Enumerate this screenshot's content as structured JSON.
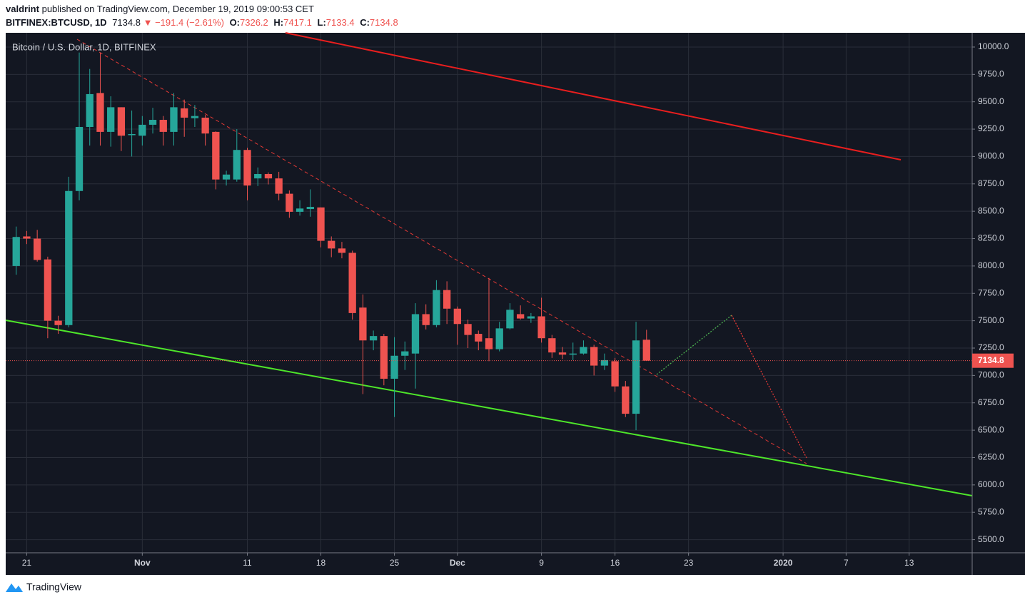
{
  "header": {
    "author": "valdrint",
    "published": "published on TradingView.com, December 19, 2019 09:00:53 CET",
    "symbol": "BITFINEX:BTCUSD, 1D",
    "last": "7134.8",
    "arrow": "▼",
    "change": "−191.4 (−2.61%)",
    "ohlc": [
      {
        "label": "O:",
        "value": "7326.2"
      },
      {
        "label": "H:",
        "value": "7417.1"
      },
      {
        "label": "L:",
        "value": "7133.4"
      },
      {
        "label": "C:",
        "value": "7134.8"
      }
    ]
  },
  "footer": {
    "brand": "TradingView"
  },
  "chart_data": {
    "type": "candlestick",
    "title": "Bitcoin / U.S. Dollar, 1D, BITFINEX",
    "up_color": "#26a69a",
    "down_color": "#ef5350",
    "grid": true,
    "x": [
      "2019-10-20",
      "2019-10-21",
      "2019-10-22",
      "2019-10-23",
      "2019-10-24",
      "2019-10-25",
      "2019-10-26",
      "2019-10-27",
      "2019-10-28",
      "2019-10-29",
      "2019-10-30",
      "2019-10-31",
      "2019-11-01",
      "2019-11-02",
      "2019-11-03",
      "2019-11-04",
      "2019-11-05",
      "2019-11-06",
      "2019-11-07",
      "2019-11-08",
      "2019-11-09",
      "2019-11-10",
      "2019-11-11",
      "2019-11-12",
      "2019-11-13",
      "2019-11-14",
      "2019-11-15",
      "2019-11-16",
      "2019-11-17",
      "2019-11-18",
      "2019-11-19",
      "2019-11-20",
      "2019-11-21",
      "2019-11-22",
      "2019-11-23",
      "2019-11-24",
      "2019-11-25",
      "2019-11-26",
      "2019-11-27",
      "2019-11-28",
      "2019-11-29",
      "2019-11-30",
      "2019-12-01",
      "2019-12-02",
      "2019-12-03",
      "2019-12-04",
      "2019-12-05",
      "2019-12-06",
      "2019-12-07",
      "2019-12-08",
      "2019-12-09",
      "2019-12-10",
      "2019-12-11",
      "2019-12-12",
      "2019-12-13",
      "2019-12-14",
      "2019-12-15",
      "2019-12-16",
      "2019-12-17",
      "2019-12-18",
      "2019-12-19"
    ],
    "open": [
      8000,
      8270,
      8250,
      8060,
      7500,
      7460,
      8685,
      9270,
      9580,
      9225,
      9450,
      9195,
      9190,
      9290,
      9335,
      9225,
      9440,
      9350,
      9355,
      9225,
      8790,
      8790,
      9060,
      8800,
      8840,
      8800,
      8660,
      8495,
      8520,
      8535,
      8230,
      8160,
      8120,
      7620,
      7320,
      7360,
      6970,
      7180,
      7200,
      7560,
      7460,
      7780,
      7610,
      7470,
      7380,
      7340,
      7240,
      7430,
      7560,
      7520,
      7540,
      7340,
      7210,
      7190,
      7200,
      7260,
      7090,
      7130,
      6900,
      6650,
      7326.2
    ],
    "high": [
      8360,
      8320,
      8330,
      8085,
      7545,
      8815,
      9950,
      9800,
      9950,
      9550,
      9450,
      9420,
      9370,
      9445,
      9370,
      9580,
      9520,
      9470,
      9380,
      9230,
      8870,
      9250,
      9080,
      8900,
      8855,
      8860,
      8690,
      8600,
      8700,
      8535,
      8270,
      8220,
      8140,
      7740,
      7410,
      7380,
      7350,
      7310,
      7660,
      7650,
      7870,
      7860,
      7630,
      7510,
      7410,
      7890,
      7490,
      7660,
      7640,
      7570,
      7710,
      7370,
      7260,
      7300,
      7320,
      7280,
      7200,
      7160,
      6950,
      7490,
      7417.1
    ],
    "low": [
      7920,
      8200,
      8040,
      7340,
      7380,
      7440,
      8600,
      9100,
      9100,
      9090,
      9050,
      9000,
      9100,
      9210,
      9100,
      9100,
      9180,
      9270,
      9100,
      8700,
      8735,
      8770,
      8600,
      8730,
      8745,
      8600,
      8440,
      8460,
      8450,
      8170,
      8080,
      8070,
      7510,
      6830,
      7230,
      6910,
      6620,
      7050,
      6880,
      7420,
      7440,
      7470,
      7280,
      7250,
      7230,
      7130,
      7220,
      7420,
      7510,
      7480,
      7300,
      7160,
      7150,
      7140,
      7190,
      7000,
      7050,
      6850,
      6620,
      6500,
      7133.4
    ],
    "close": [
      8265,
      8250,
      8055,
      7500,
      7460,
      8685,
      9270,
      9570,
      9225,
      9450,
      9190,
      9205,
      9290,
      9335,
      9225,
      9450,
      9355,
      9370,
      9210,
      8790,
      8835,
      9060,
      8735,
      8840,
      8800,
      8660,
      8495,
      8525,
      8540,
      8230,
      8160,
      8120,
      7570,
      7320,
      7360,
      6970,
      7180,
      7220,
      7560,
      7460,
      7780,
      7610,
      7470,
      7370,
      7310,
      7240,
      7430,
      7600,
      7520,
      7540,
      7340,
      7210,
      7190,
      7200,
      7260,
      7090,
      7140,
      6900,
      6650,
      7320,
      7134.8
    ],
    "xlim": [
      "2019-10-19",
      "2020-01-19"
    ],
    "xticks": [
      {
        "value": "2019-10-21",
        "label": "21"
      },
      {
        "value": "2019-11-01",
        "label": "Nov"
      },
      {
        "value": "2019-11-11",
        "label": "11"
      },
      {
        "value": "2019-11-18",
        "label": "18"
      },
      {
        "value": "2019-11-25",
        "label": "25"
      },
      {
        "value": "2019-12-01",
        "label": "Dec"
      },
      {
        "value": "2019-12-09",
        "label": "9"
      },
      {
        "value": "2019-12-16",
        "label": "16"
      },
      {
        "value": "2019-12-23",
        "label": "23"
      },
      {
        "value": "2020-01-01",
        "label": "2020"
      },
      {
        "value": "2020-01-07",
        "label": "7"
      },
      {
        "value": "2020-01-13",
        "label": "13"
      }
    ],
    "ylim": [
      5380,
      10130
    ],
    "yticks": [
      {
        "value": 5500,
        "label": "5500.0"
      },
      {
        "value": 5750,
        "label": "5750.0"
      },
      {
        "value": 6000,
        "label": "6000.0"
      },
      {
        "value": 6250,
        "label": "6250.0"
      },
      {
        "value": 6500,
        "label": "6500.0"
      },
      {
        "value": 6750,
        "label": "6750.0"
      },
      {
        "value": 7000,
        "label": "7000.0"
      },
      {
        "value": 7250,
        "label": "7250.0"
      },
      {
        "value": 7500,
        "label": "7500.0"
      },
      {
        "value": 7750,
        "label": "7750.0"
      },
      {
        "value": 8000,
        "label": "8000.0"
      },
      {
        "value": 8250,
        "label": "8250.0"
      },
      {
        "value": 8500,
        "label": "8500.0"
      },
      {
        "value": 8750,
        "label": "8750.0"
      },
      {
        "value": 9000,
        "label": "9000.0"
      },
      {
        "value": 9250,
        "label": "9250.0"
      },
      {
        "value": 9500,
        "label": "9500.0"
      },
      {
        "value": 9750,
        "label": "9750.0"
      },
      {
        "value": 10000,
        "label": "10000.0"
      }
    ]
  }
}
